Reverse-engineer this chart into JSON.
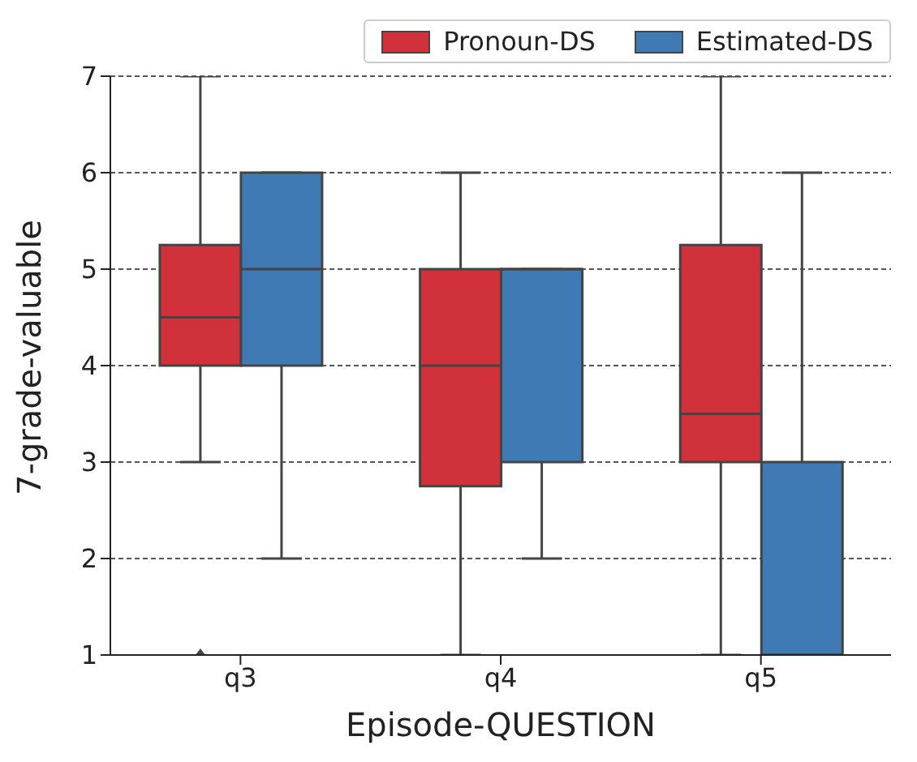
{
  "chart_data": {
    "type": "box",
    "xlabel": "Episode-QUESTION",
    "ylabel": "7-grade-valuable",
    "categories": [
      "q3",
      "q4",
      "q5"
    ],
    "ylim": [
      1,
      7
    ],
    "yticks": [
      1,
      2,
      3,
      4,
      5,
      6,
      7
    ],
    "grid": "y",
    "legend": "top right",
    "series": [
      {
        "name": "Pronoun-DS",
        "color": "#d0313a",
        "boxes": [
          {
            "low": 3,
            "q1": 4,
            "median": 4.5,
            "q3": 5.25,
            "high": 7,
            "outliers": [
              1
            ]
          },
          {
            "low": 1,
            "q1": 2.75,
            "median": 4,
            "q3": 5,
            "high": 6
          },
          {
            "low": 1,
            "q1": 3,
            "median": 3.5,
            "q3": 5.25,
            "high": 7
          }
        ]
      },
      {
        "name": "Estimated-DS",
        "color": "#3f7ab5",
        "boxes": [
          {
            "low": 2,
            "q1": 4,
            "median": 5,
            "q3": 6,
            "high": 6
          },
          {
            "low": 2,
            "q1": 3,
            "median": 5,
            "q3": 5,
            "high": 5
          },
          {
            "low": 1,
            "q1": 1,
            "median": 1,
            "q3": 3,
            "high": 6
          }
        ]
      }
    ]
  }
}
